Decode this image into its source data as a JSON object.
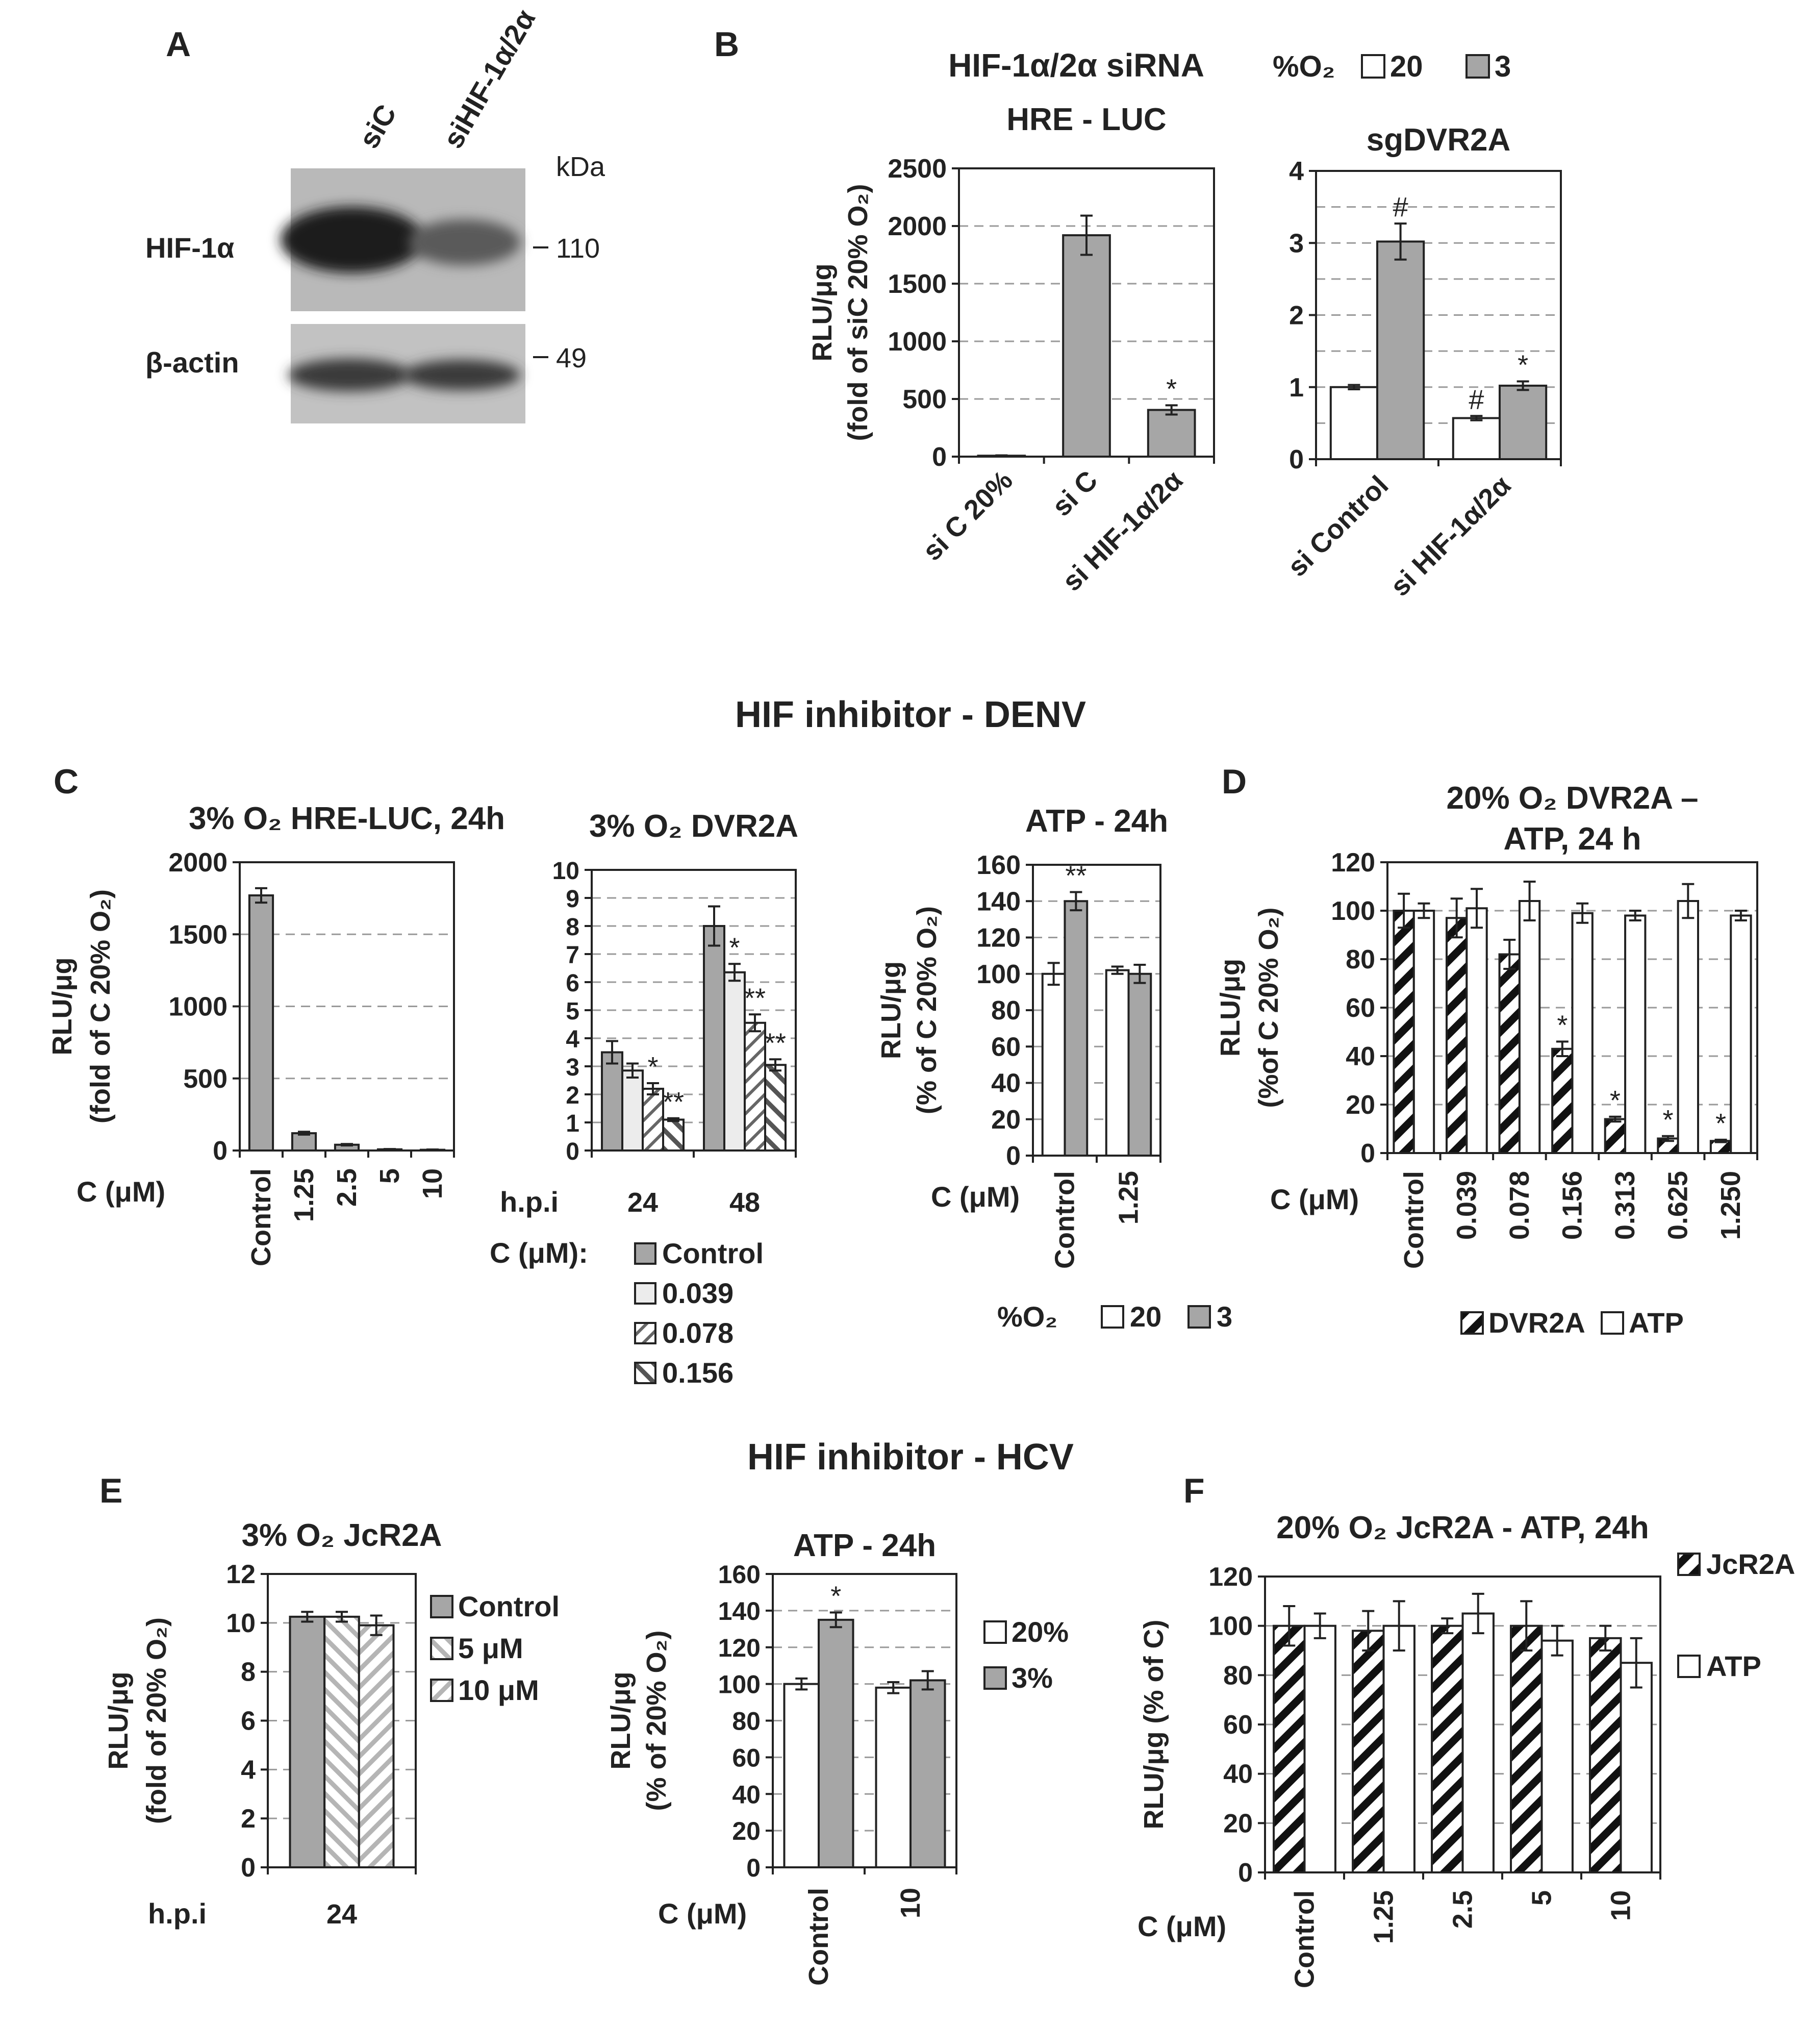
{
  "colors": {
    "white_bar": "#ffffff",
    "gray_bar": "#a6a6a6",
    "axis": "#222222",
    "grid": "#9a9a9a"
  },
  "section_titles": {
    "denv": "HIF inhibitor - DENV",
    "hcv": "HIF inhibitor - HCV"
  },
  "western_blot": {
    "panel_label": "A",
    "lanes": [
      "siC",
      "siHIF-1α/2α"
    ],
    "kda_label": "kDa",
    "bands": [
      {
        "protein": "HIF-1α",
        "kda": "110"
      },
      {
        "protein": "β-actin",
        "kda": "49"
      }
    ]
  },
  "panel_b_header": {
    "panel_label": "B",
    "title": "HIF-1α/2α siRNA",
    "legend_prefix": "%O₂",
    "legend_items": [
      "20",
      "3"
    ]
  },
  "panel_c_label": "C",
  "panel_d_label": "D",
  "panel_e_label": "E",
  "panel_f_label": "F",
  "c_legend_dvr2a": {
    "title": "C (μM):",
    "items": [
      "Control",
      "0.039",
      "0.078",
      "0.156"
    ]
  },
  "c_legend_atp": {
    "title": "%O₂",
    "items": [
      "20",
      "3"
    ]
  },
  "d_legend": {
    "items": [
      "DVR2A",
      "ATP"
    ]
  },
  "e_legend_jcr2a": {
    "items": [
      "Control",
      "5 μM",
      "10 μM"
    ]
  },
  "e_legend_atp": {
    "items": [
      "20%",
      "3%"
    ]
  },
  "f_legend": {
    "items": [
      "JcR2A",
      "ATP"
    ]
  },
  "chart_data": [
    {
      "id": "b1",
      "type": "bar",
      "title": "HRE - LUC",
      "ylabel": "RLU/μg",
      "ylabel2": "(fold of siC 20% O₂)",
      "ylim": [
        0,
        2500
      ],
      "yticks": [
        0,
        500,
        1000,
        1500,
        2000,
        2500
      ],
      "grid_values": [
        500,
        1000,
        1500,
        2000
      ],
      "categories": [
        "si C 20%",
        "si C",
        "si HIF-1α/2α"
      ],
      "category_rotate": -45,
      "series": [
        {
          "name": "3",
          "style": "gray",
          "values": [
            8,
            1920,
            405
          ],
          "errors": [
            3,
            170,
            40
          ],
          "annotations": [
            "",
            "",
            "*"
          ]
        }
      ]
    },
    {
      "id": "b2",
      "type": "bar",
      "title": "sgDVR2A",
      "ylabel": "",
      "ylabel2": "",
      "ylim": [
        0,
        4
      ],
      "yticks": [
        0,
        1,
        2,
        3,
        4
      ],
      "grid_values": [
        0.5,
        1,
        1.5,
        2,
        2.5,
        3,
        3.5
      ],
      "categories": [
        "si Control",
        "si HIF-1α/2α"
      ],
      "category_rotate": -45,
      "series": [
        {
          "name": "20",
          "style": "white",
          "values": [
            1.0,
            0.57
          ],
          "errors": [
            0.03,
            0.03
          ],
          "annotations": [
            "",
            "#"
          ]
        },
        {
          "name": "3",
          "style": "gray",
          "values": [
            3.02,
            1.02
          ],
          "errors": [
            0.25,
            0.06
          ],
          "annotations": [
            "#",
            "*"
          ]
        }
      ]
    },
    {
      "id": "c1",
      "type": "bar",
      "title": "3% O₂ HRE-LUC, 24h",
      "ylabel": "RLU/μg",
      "ylabel2": "(fold of C 20% O₂)",
      "ylim": [
        0,
        2000
      ],
      "yticks": [
        0,
        500,
        1000,
        1500,
        2000
      ],
      "grid_values": [
        500,
        1000,
        1500
      ],
      "xlabel_left": "C (μM)",
      "categories": [
        "Control",
        "1.25",
        "2.5",
        "5",
        "10"
      ],
      "category_rotate": -90,
      "series": [
        {
          "name": "3",
          "style": "gray",
          "values": [
            1770,
            120,
            40,
            8,
            5
          ],
          "errors": [
            50,
            10,
            5,
            2,
            2
          ],
          "annotations": [
            "",
            "",
            "",
            "",
            ""
          ]
        }
      ]
    },
    {
      "id": "c2",
      "type": "bar",
      "title": "3% O₂ DVR2A",
      "ylabel": "",
      "ylabel2": "",
      "ylim": [
        0,
        10
      ],
      "yticks": [
        0,
        1,
        2,
        3,
        4,
        5,
        6,
        7,
        8,
        9,
        10
      ],
      "grid_values": [
        1,
        2,
        3,
        4,
        5,
        6,
        7,
        8,
        9
      ],
      "xlabel_left": "h.p.i",
      "categories": [
        "24",
        "48"
      ],
      "category_rotate": 0,
      "series": [
        {
          "name": "Control",
          "style": "gray",
          "values": [
            3.5,
            8.0
          ],
          "errors": [
            0.4,
            0.7
          ],
          "annotations": [
            "",
            ""
          ]
        },
        {
          "name": "0.039",
          "style": "light",
          "values": [
            2.85,
            6.35
          ],
          "errors": [
            0.25,
            0.3
          ],
          "annotations": [
            "",
            "*"
          ]
        },
        {
          "name": "0.078",
          "style": "hatch-thin",
          "values": [
            2.2,
            4.55
          ],
          "errors": [
            0.2,
            0.3
          ],
          "annotations": [
            "*",
            "**"
          ]
        },
        {
          "name": "0.156",
          "style": "hatch-med",
          "values": [
            1.1,
            3.05
          ],
          "errors": [
            0.05,
            0.2
          ],
          "annotations": [
            "**",
            "**"
          ]
        }
      ]
    },
    {
      "id": "c3",
      "type": "bar",
      "title": "ATP - 24h",
      "ylabel": "RLU/μg",
      "ylabel2": "(% of C 20% O₂)",
      "ylim": [
        0,
        160
      ],
      "yticks": [
        0,
        20,
        40,
        60,
        80,
        100,
        120,
        140,
        160
      ],
      "grid_values": [
        20,
        40,
        60,
        80,
        100,
        120,
        140
      ],
      "xlabel_left": "C (μM)",
      "categories": [
        "Control",
        "1.25"
      ],
      "category_rotate": -90,
      "series": [
        {
          "name": "20",
          "style": "white",
          "values": [
            100,
            102
          ],
          "errors": [
            6,
            2
          ],
          "annotations": [
            "",
            ""
          ]
        },
        {
          "name": "3",
          "style": "gray",
          "values": [
            140,
            100
          ],
          "errors": [
            5,
            5
          ],
          "annotations": [
            "**",
            ""
          ]
        }
      ]
    },
    {
      "id": "d",
      "type": "bar",
      "title": "20% O₂ DVR2A –",
      "title2": "ATP, 24 h",
      "ylabel": "RLU/μg",
      "ylabel2": "(%of C 20% O₂)",
      "ylim": [
        0,
        120
      ],
      "yticks": [
        0,
        20,
        40,
        60,
        80,
        100,
        120
      ],
      "grid_values": [
        20,
        40,
        60,
        80,
        100
      ],
      "xlabel_left": "C (μM)",
      "categories": [
        "Control",
        "0.039",
        "0.078",
        "0.156",
        "0.313",
        "0.625",
        "1.250"
      ],
      "category_rotate": -90,
      "series": [
        {
          "name": "DVR2A",
          "style": "hatch-bold",
          "values": [
            100,
            97,
            82,
            43,
            14,
            6,
            5
          ],
          "errors": [
            7,
            8,
            6,
            3,
            1,
            1,
            0.5
          ],
          "annotations": [
            "",
            "",
            "",
            "*",
            "*",
            "*",
            "*"
          ]
        },
        {
          "name": "ATP",
          "style": "white",
          "values": [
            100,
            101,
            104,
            99,
            98,
            104,
            98
          ],
          "errors": [
            3,
            8,
            8,
            4,
            2,
            7,
            2
          ],
          "annotations": [
            "",
            "",
            "",
            "",
            "",
            "",
            ""
          ]
        }
      ]
    },
    {
      "id": "e1",
      "type": "bar",
      "title": "3% O₂ JcR2A",
      "ylabel": "RLU/μg",
      "ylabel2": "(fold of 20% O₂)",
      "ylim": [
        0,
        12
      ],
      "yticks": [
        0,
        2,
        4,
        6,
        8,
        10,
        12
      ],
      "grid_values": [
        2,
        4,
        6,
        8,
        10
      ],
      "xlabel_left": "h.p.i",
      "categories": [
        "24"
      ],
      "category_rotate": 0,
      "series": [
        {
          "name": "Control",
          "style": "gray",
          "values": [
            10.25
          ],
          "errors": [
            0.2
          ],
          "annotations": [
            ""
          ]
        },
        {
          "name": "5 μM",
          "style": "light-hatch",
          "values": [
            10.25
          ],
          "errors": [
            0.2
          ],
          "annotations": [
            ""
          ]
        },
        {
          "name": "10 μM",
          "style": "light-hatch2",
          "values": [
            9.9
          ],
          "errors": [
            0.4
          ],
          "annotations": [
            ""
          ]
        }
      ]
    },
    {
      "id": "e2",
      "type": "bar",
      "title": "ATP - 24h",
      "ylabel": "RLU/μg",
      "ylabel2": "(% of 20% O₂)",
      "ylim": [
        0,
        160
      ],
      "yticks": [
        0,
        20,
        40,
        60,
        80,
        100,
        120,
        140,
        160
      ],
      "grid_values": [
        20,
        40,
        60,
        80,
        100,
        120,
        140
      ],
      "xlabel_left": "C (μM)",
      "categories": [
        "Control",
        "10"
      ],
      "category_rotate": -90,
      "series": [
        {
          "name": "20%",
          "style": "white",
          "values": [
            100,
            98
          ],
          "errors": [
            3,
            3
          ],
          "annotations": [
            "",
            ""
          ]
        },
        {
          "name": "3%",
          "style": "gray",
          "values": [
            135,
            102
          ],
          "errors": [
            4,
            5
          ],
          "annotations": [
            "*",
            ""
          ]
        }
      ]
    },
    {
      "id": "f",
      "type": "bar",
      "title": "20% O₂ JcR2A - ATP, 24h",
      "ylabel": "RLU/μg  (% of C)",
      "ylabel2": "",
      "ylim": [
        0,
        120
      ],
      "yticks": [
        0,
        20,
        40,
        60,
        80,
        100,
        120
      ],
      "grid_values": [
        20,
        40,
        60,
        80,
        100
      ],
      "xlabel_left": "C (μM)",
      "categories": [
        "Control",
        "1.25",
        "2.5",
        "5",
        "10"
      ],
      "category_rotate": -90,
      "series": [
        {
          "name": "JcR2A",
          "style": "hatch-bold",
          "values": [
            100,
            98,
            100,
            100,
            95
          ],
          "errors": [
            8,
            8,
            3,
            10,
            5
          ],
          "annotations": [
            "",
            "",
            "",
            "",
            ""
          ]
        },
        {
          "name": "ATP",
          "style": "white",
          "values": [
            100,
            100,
            105,
            94,
            85
          ],
          "errors": [
            5,
            10,
            8,
            6,
            10
          ],
          "annotations": [
            "",
            "",
            "",
            "",
            ""
          ]
        }
      ]
    }
  ]
}
